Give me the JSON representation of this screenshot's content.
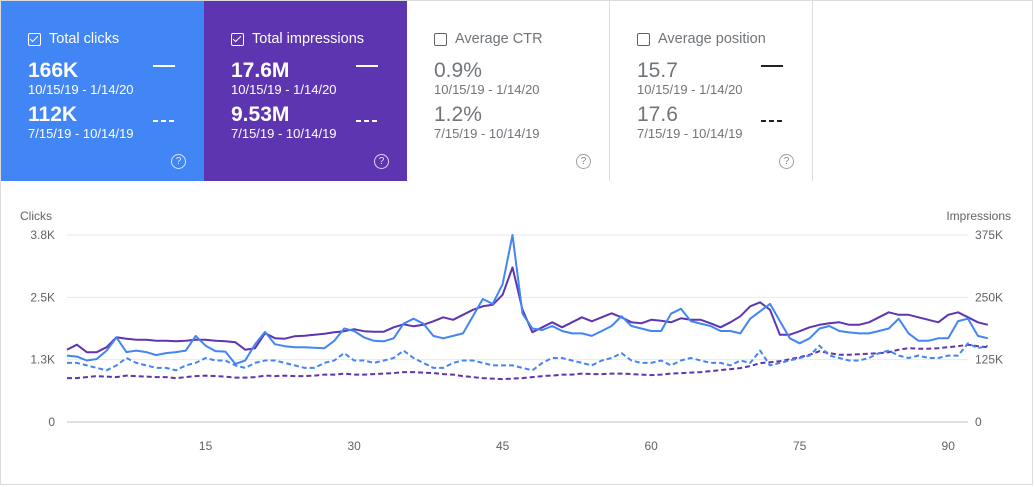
{
  "cards": [
    {
      "label": "Total clicks",
      "checked": true,
      "value": "166K",
      "date": "10/15/19 - 1/14/20",
      "value2": "112K",
      "date2": "7/15/19 - 10/14/19",
      "help_icon": "help-circle-icon",
      "color": "#4285f4"
    },
    {
      "label": "Total impressions",
      "checked": true,
      "value": "17.6M",
      "date": "10/15/19 - 1/14/20",
      "value2": "9.53M",
      "date2": "7/15/19 - 10/14/19",
      "help_icon": "help-circle-icon",
      "color": "#5e35b1"
    },
    {
      "label": "Average CTR",
      "checked": false,
      "value": "0.9%",
      "date": "10/15/19 - 1/14/20",
      "value2": "1.2%",
      "date2": "7/15/19 - 10/14/19",
      "help_icon": "help-circle-icon"
    },
    {
      "label": "Average position",
      "checked": false,
      "value": "15.7",
      "date": "10/15/19 - 1/14/20",
      "value2": "17.6",
      "date2": "7/15/19 - 10/14/19",
      "help_icon": "help-circle-icon"
    }
  ],
  "chart_data": {
    "type": "line",
    "left_axis_label": "Clicks",
    "right_axis_label": "Impressions",
    "left_ticks": [
      "3.8K",
      "2.5K",
      "1.3K",
      "0"
    ],
    "right_ticks": [
      "375K",
      "250K",
      "125K",
      "0"
    ],
    "left_ylim": [
      0,
      3800
    ],
    "right_ylim": [
      0,
      375000
    ],
    "x_ticks": [
      15,
      30,
      45,
      60,
      75,
      90
    ],
    "xlim": [
      1,
      92
    ],
    "grid": true,
    "series": [
      {
        "name": "Total clicks",
        "period": "10/15/19 - 1/14/20",
        "axis": "left",
        "style": "solid",
        "color": "#4285f4",
        "values": [
          1350,
          1330,
          1250,
          1280,
          1450,
          1720,
          1420,
          1450,
          1420,
          1360,
          1400,
          1420,
          1450,
          1750,
          1550,
          1440,
          1430,
          1180,
          1250,
          1580,
          1830,
          1580,
          1540,
          1520,
          1520,
          1510,
          1500,
          1650,
          1900,
          1850,
          1720,
          1650,
          1640,
          1700,
          2000,
          2100,
          2000,
          1750,
          1700,
          1750,
          1800,
          2150,
          2500,
          2400,
          2800,
          3800,
          2200,
          1900,
          1870,
          1950,
          1850,
          1800,
          1800,
          1750,
          1850,
          1950,
          2150,
          1950,
          1900,
          1850,
          1850,
          2200,
          2300,
          2050,
          2000,
          1950,
          1850,
          1850,
          1800,
          2100,
          2250,
          2400,
          2050,
          1700,
          1600,
          1700,
          1900,
          1950,
          1850,
          1820,
          1800,
          1800,
          1850,
          1900,
          2100,
          1800,
          1650,
          1650,
          1700,
          1700,
          2050,
          2100,
          1750,
          1700
        ]
      },
      {
        "name": "Total impressions",
        "period": "10/15/19 - 1/14/20",
        "axis": "right",
        "style": "solid",
        "color": "#5e35b1",
        "values": [
          145000,
          155000,
          140000,
          140000,
          150000,
          170000,
          167000,
          165000,
          165000,
          163000,
          163000,
          162000,
          163000,
          165000,
          165000,
          163000,
          162000,
          160000,
          145000,
          148000,
          178000,
          168000,
          167000,
          172000,
          173000,
          175000,
          177000,
          180000,
          182000,
          186000,
          182000,
          181000,
          181000,
          190000,
          196000,
          192000,
          195000,
          202000,
          210000,
          205000,
          215000,
          225000,
          232000,
          235000,
          255000,
          310000,
          225000,
          180000,
          190000,
          200000,
          190000,
          200000,
          210000,
          202000,
          210000,
          218000,
          210000,
          200000,
          198000,
          205000,
          203000,
          200000,
          208000,
          205000,
          205000,
          198000,
          190000,
          200000,
          212000,
          232000,
          240000,
          225000,
          175000,
          175000,
          182000,
          190000,
          195000,
          198000,
          200000,
          195000,
          195000,
          200000,
          210000,
          220000,
          215000,
          215000,
          210000,
          205000,
          200000,
          215000,
          220000,
          210000,
          200000,
          195000
        ]
      },
      {
        "name": "Total clicks",
        "period": "7/15/19 - 10/14/19",
        "axis": "left",
        "style": "dashed",
        "color": "#4285f4",
        "values": [
          1200,
          1200,
          1150,
          1100,
          1050,
          1150,
          1300,
          1200,
          1150,
          1100,
          1100,
          1050,
          1150,
          1200,
          1300,
          1250,
          1250,
          1150,
          1100,
          1200,
          1250,
          1250,
          1200,
          1150,
          1100,
          1100,
          1200,
          1250,
          1400,
          1250,
          1250,
          1200,
          1250,
          1300,
          1450,
          1300,
          1200,
          1100,
          1100,
          1200,
          1250,
          1250,
          1200,
          1150,
          1150,
          1150,
          1100,
          1050,
          1200,
          1300,
          1300,
          1250,
          1200,
          1150,
          1250,
          1300,
          1400,
          1250,
          1200,
          1200,
          1250,
          1150,
          1250,
          1300,
          1250,
          1200,
          1200,
          1150,
          1250,
          1200,
          1450,
          1150,
          1200,
          1250,
          1300,
          1350,
          1550,
          1350,
          1300,
          1250,
          1250,
          1300,
          1400,
          1450,
          1350,
          1300,
          1350,
          1300,
          1300,
          1350,
          1350,
          1600,
          1500,
          1550
        ]
      },
      {
        "name": "Total impressions",
        "period": "7/15/19 - 10/14/19",
        "axis": "right",
        "style": "dashed",
        "color": "#5e35b1",
        "values": [
          88000,
          88000,
          90000,
          92000,
          91000,
          90000,
          93000,
          92000,
          91000,
          90000,
          90000,
          88000,
          90000,
          92000,
          93000,
          92000,
          91000,
          89000,
          89000,
          90000,
          93000,
          92000,
          93000,
          92000,
          92000,
          93000,
          95000,
          95000,
          97000,
          95000,
          95000,
          96000,
          97000,
          98000,
          100000,
          100000,
          99000,
          98000,
          96000,
          95000,
          92000,
          90000,
          88000,
          87000,
          86000,
          87000,
          88000,
          90000,
          92000,
          93000,
          95000,
          95000,
          97000,
          96000,
          96000,
          97000,
          97000,
          96000,
          95000,
          94000,
          95000,
          97000,
          98000,
          99000,
          100000,
          102000,
          104000,
          106000,
          108000,
          112000,
          118000,
          120000,
          122000,
          126000,
          130000,
          135000,
          142000,
          138000,
          135000,
          135000,
          136000,
          137000,
          138000,
          140000,
          145000,
          148000,
          147000,
          147000,
          148000,
          150000,
          152000,
          155000,
          152000,
          150000
        ]
      }
    ]
  }
}
